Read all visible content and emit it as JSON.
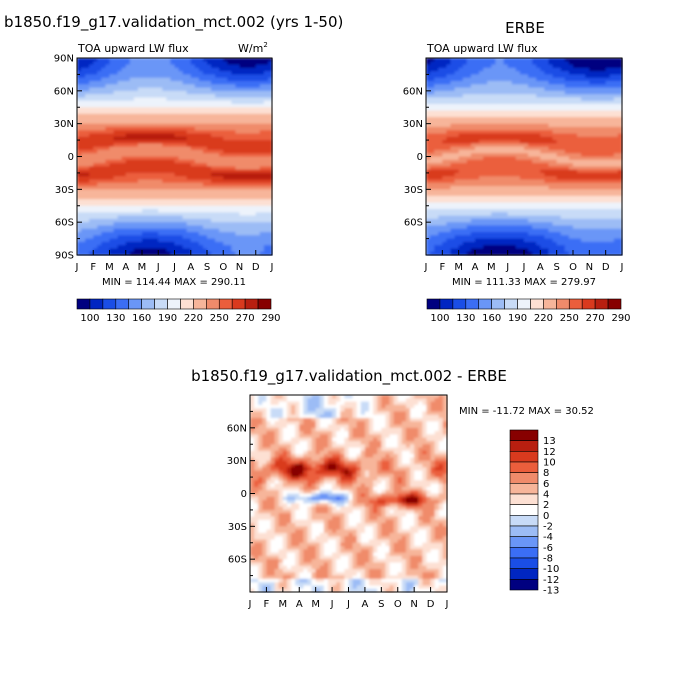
{
  "chart_data": [
    {
      "type": "heatmap",
      "id": "model",
      "title": "b1850.f19_g17.validation_mct.002 (yrs 1-50)",
      "subtitle": "TOA upward LW flux",
      "units": "W/m",
      "units_sup": "2",
      "x": [
        "J",
        "F",
        "M",
        "A",
        "M",
        "J",
        "J",
        "A",
        "S",
        "O",
        "N",
        "D",
        "J"
      ],
      "y_ticks": [
        "90N",
        "60N",
        "30N",
        "0",
        "30S",
        "60S",
        "90S"
      ],
      "y_values": [
        90,
        60,
        30,
        0,
        -30,
        -60,
        -90
      ],
      "xlim": [
        0,
        12
      ],
      "ylim": [
        -90,
        90
      ],
      "stats": "MIN = 114.44  MAX = 290.11",
      "min": 114.44,
      "max": 290.11,
      "colorbar": {
        "labels": [
          "100",
          "130",
          "160",
          "190",
          "220",
          "250",
          "270",
          "290"
        ],
        "levels": [
          100,
          115,
          130,
          145,
          160,
          175,
          190,
          205,
          220,
          235,
          250,
          260,
          270,
          280,
          290
        ],
        "colors": [
          "#000080",
          "#0026c2",
          "#1a4ee6",
          "#3b6ef5",
          "#6a96f7",
          "#9cbcf5",
          "#c8dbf7",
          "#edf3fb",
          "#fde0d3",
          "#f7b59a",
          "#f08b6b",
          "#eb5e3c",
          "#d93a1e",
          "#b81f10",
          "#870000"
        ]
      }
    },
    {
      "type": "heatmap",
      "id": "obs",
      "title": "ERBE",
      "subtitle": "TOA upward LW flux",
      "x": [
        "J",
        "F",
        "M",
        "A",
        "M",
        "J",
        "J",
        "A",
        "S",
        "O",
        "N",
        "D",
        "J"
      ],
      "y_ticks": [
        "60N",
        "30N",
        "0",
        "30S",
        "60S"
      ],
      "y_values": [
        60,
        30,
        0,
        -30,
        -60
      ],
      "xlim": [
        0,
        12
      ],
      "ylim": [
        -90,
        90
      ],
      "stats": "MIN = 111.33  MAX = 279.97",
      "min": 111.33,
      "max": 279.97,
      "colorbar": {
        "labels": [
          "100",
          "130",
          "160",
          "190",
          "220",
          "250",
          "270",
          "290"
        ],
        "levels": [
          100,
          115,
          130,
          145,
          160,
          175,
          190,
          205,
          220,
          235,
          250,
          260,
          270,
          280,
          290
        ],
        "colors": [
          "#000080",
          "#0026c2",
          "#1a4ee6",
          "#3b6ef5",
          "#6a96f7",
          "#9cbcf5",
          "#c8dbf7",
          "#edf3fb",
          "#fde0d3",
          "#f7b59a",
          "#f08b6b",
          "#eb5e3c",
          "#d93a1e",
          "#b81f10",
          "#870000"
        ]
      }
    },
    {
      "type": "heatmap",
      "id": "diff",
      "title": "b1850.f19_g17.validation_mct.002 - ERBE",
      "x": [
        "J",
        "F",
        "M",
        "A",
        "M",
        "J",
        "J",
        "A",
        "S",
        "O",
        "N",
        "D",
        "J"
      ],
      "y_ticks": [
        "60N",
        "30N",
        "0",
        "30S",
        "60S"
      ],
      "y_values": [
        60,
        30,
        0,
        -30,
        -60
      ],
      "xlim": [
        0,
        12
      ],
      "ylim": [
        -90,
        90
      ],
      "stats": "MIN = -11.72  MAX =  30.52",
      "min": -11.72,
      "max": 30.52,
      "colorbar": {
        "labels": [
          "13",
          "12",
          "10",
          "8",
          "6",
          "4",
          "2",
          "0",
          "-2",
          "-4",
          "-6",
          "-8",
          "-10",
          "-12",
          "-13"
        ],
        "colors": [
          "#870000",
          "#b81f10",
          "#d93a1e",
          "#eb5e3c",
          "#f08b6b",
          "#f7b59a",
          "#fde0d3",
          "#ffffff",
          "#c8dbf7",
          "#9cbcf5",
          "#6a96f7",
          "#3b6ef5",
          "#1a4ee6",
          "#0026c2",
          "#000080"
        ]
      }
    }
  ]
}
